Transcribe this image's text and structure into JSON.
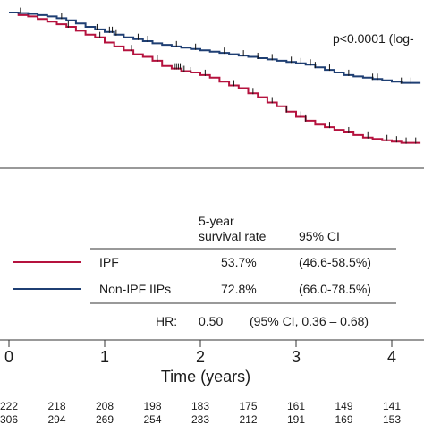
{
  "chart_data": {
    "type": "line",
    "subtype": "kaplan-meier",
    "pvalue_text": "p<0.0001 (log-",
    "xlabel": "Time (years)",
    "xticks": [
      "0",
      "1",
      "2",
      "3",
      "4"
    ],
    "xlim": [
      0,
      4.3
    ],
    "ylim": [
      0.43,
      1.0
    ],
    "series": [
      {
        "name": "IPF",
        "color": "#b5123e",
        "points": [
          [
            0,
            1.0
          ],
          [
            0.1,
            0.99
          ],
          [
            0.2,
            0.985
          ],
          [
            0.3,
            0.975
          ],
          [
            0.4,
            0.965
          ],
          [
            0.5,
            0.955
          ],
          [
            0.6,
            0.945
          ],
          [
            0.7,
            0.93
          ],
          [
            0.8,
            0.915
          ],
          [
            0.9,
            0.905
          ],
          [
            1.0,
            0.885
          ],
          [
            1.1,
            0.87
          ],
          [
            1.2,
            0.855
          ],
          [
            1.3,
            0.84
          ],
          [
            1.4,
            0.83
          ],
          [
            1.5,
            0.815
          ],
          [
            1.6,
            0.795
          ],
          [
            1.7,
            0.785
          ],
          [
            1.8,
            0.775
          ],
          [
            1.9,
            0.77
          ],
          [
            2.0,
            0.76
          ],
          [
            2.1,
            0.75
          ],
          [
            2.2,
            0.735
          ],
          [
            2.3,
            0.72
          ],
          [
            2.4,
            0.71
          ],
          [
            2.5,
            0.69
          ],
          [
            2.6,
            0.675
          ],
          [
            2.7,
            0.655
          ],
          [
            2.8,
            0.64
          ],
          [
            2.9,
            0.62
          ],
          [
            3.0,
            0.6
          ],
          [
            3.1,
            0.585
          ],
          [
            3.2,
            0.57
          ],
          [
            3.3,
            0.56
          ],
          [
            3.4,
            0.55
          ],
          [
            3.5,
            0.54
          ],
          [
            3.6,
            0.53
          ],
          [
            3.7,
            0.52
          ],
          [
            3.8,
            0.515
          ],
          [
            3.9,
            0.51
          ],
          [
            4.0,
            0.505
          ],
          [
            4.1,
            0.5
          ],
          [
            4.3,
            0.5
          ]
        ],
        "censor_x": [
          0.62,
          0.95,
          1.28,
          1.55,
          1.73,
          1.75,
          1.77,
          1.79,
          1.81,
          1.83,
          1.9,
          2.05,
          2.35,
          2.55,
          2.75,
          2.9,
          3.05,
          3.1,
          3.35,
          3.55,
          3.75,
          3.95,
          4.05,
          4.15,
          4.25
        ]
      },
      {
        "name": "Non-IPF IIPs",
        "color": "#1f3f73",
        "points": [
          [
            0,
            1.0
          ],
          [
            0.1,
            0.998
          ],
          [
            0.2,
            0.995
          ],
          [
            0.3,
            0.99
          ],
          [
            0.4,
            0.985
          ],
          [
            0.5,
            0.978
          ],
          [
            0.6,
            0.97
          ],
          [
            0.7,
            0.958
          ],
          [
            0.8,
            0.945
          ],
          [
            0.9,
            0.935
          ],
          [
            1.0,
            0.925
          ],
          [
            1.1,
            0.915
          ],
          [
            1.2,
            0.905
          ],
          [
            1.3,
            0.898
          ],
          [
            1.4,
            0.89
          ],
          [
            1.5,
            0.882
          ],
          [
            1.6,
            0.876
          ],
          [
            1.7,
            0.87
          ],
          [
            1.8,
            0.865
          ],
          [
            1.9,
            0.86
          ],
          [
            2.0,
            0.855
          ],
          [
            2.1,
            0.85
          ],
          [
            2.2,
            0.845
          ],
          [
            2.3,
            0.84
          ],
          [
            2.4,
            0.835
          ],
          [
            2.5,
            0.83
          ],
          [
            2.6,
            0.825
          ],
          [
            2.7,
            0.82
          ],
          [
            2.8,
            0.815
          ],
          [
            2.9,
            0.81
          ],
          [
            3.0,
            0.805
          ],
          [
            3.1,
            0.8
          ],
          [
            3.2,
            0.79
          ],
          [
            3.3,
            0.78
          ],
          [
            3.4,
            0.77
          ],
          [
            3.5,
            0.76
          ],
          [
            3.6,
            0.755
          ],
          [
            3.7,
            0.75
          ],
          [
            3.8,
            0.745
          ],
          [
            3.9,
            0.74
          ],
          [
            4.0,
            0.735
          ],
          [
            4.1,
            0.73
          ],
          [
            4.3,
            0.73
          ]
        ],
        "censor_x": [
          0.12,
          0.55,
          0.92,
          1.05,
          1.08,
          1.12,
          1.35,
          1.45,
          1.75,
          1.95,
          2.25,
          2.45,
          2.6,
          2.75,
          2.95,
          3.05,
          3.15,
          3.2,
          3.35,
          3.55,
          3.8,
          3.85,
          4.1,
          4.2
        ]
      }
    ],
    "legend_table": {
      "header_rate_line1": "5-year",
      "header_rate_line2": "survival rate",
      "header_ci": "95% CI",
      "rows": [
        {
          "label": "IPF",
          "rate": "53.7%",
          "ci": "(46.6-58.5%)"
        },
        {
          "label": "Non-IPF IIPs",
          "rate": "72.8%",
          "ci": "(66.0-78.5%)"
        }
      ]
    },
    "hr": {
      "label": "HR:",
      "value": "0.50",
      "ci": "(95% CI, 0.36 – 0.68)"
    },
    "risk_table": {
      "rows": [
        {
          "series": "IPF",
          "values": [
            "222",
            "218",
            "208",
            "198",
            "183",
            "175",
            "161",
            "149",
            "141"
          ]
        },
        {
          "series": "Non-IPF IIPs",
          "values": [
            "306",
            "294",
            "269",
            "254",
            "233",
            "212",
            "191",
            "169",
            "153"
          ]
        }
      ]
    }
  }
}
